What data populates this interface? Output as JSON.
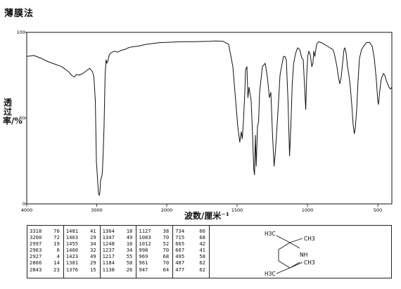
{
  "page_title": "薄膜法",
  "chart_data": {
    "type": "line",
    "title": "薄膜法",
    "xlabel": "波数/厘米⁻¹",
    "ylabel": "透过率/%",
    "xlim": [
      4000,
      400
    ],
    "ylim": [
      0,
      100
    ],
    "x_ticks": [
      4000,
      3000,
      2000,
      1500,
      1000,
      500
    ],
    "x_tick_labels": [
      "4000",
      "3000",
      "2000",
      "1500",
      "1000",
      "500"
    ],
    "y_ticks": [
      0,
      50,
      100
    ],
    "y_tick_labels": [
      "0",
      "50",
      "100"
    ],
    "grid": false,
    "legend": "none",
    "series": [
      {
        "line_color": "#111111",
        "points": [
          [
            4000,
            86
          ],
          [
            3900,
            86.5
          ],
          [
            3800,
            85
          ],
          [
            3700,
            83
          ],
          [
            3600,
            81.5
          ],
          [
            3500,
            80
          ],
          [
            3400,
            77
          ],
          [
            3360,
            75
          ],
          [
            3330,
            74.2
          ],
          [
            3318,
            74
          ],
          [
            3290,
            75.5
          ],
          [
            3250,
            75
          ],
          [
            3200,
            76
          ],
          [
            3150,
            77.5
          ],
          [
            3100,
            79
          ],
          [
            3080,
            78
          ],
          [
            3060,
            77
          ],
          [
            3040,
            74
          ],
          [
            3020,
            60
          ],
          [
            3005,
            25
          ],
          [
            2997,
            20
          ],
          [
            2985,
            12
          ],
          [
            2975,
            6
          ],
          [
            2963,
            5
          ],
          [
            2955,
            7
          ],
          [
            2945,
            14
          ],
          [
            2937,
            15
          ],
          [
            2927,
            16
          ],
          [
            2918,
            20
          ],
          [
            2908,
            30
          ],
          [
            2895,
            45
          ],
          [
            2880,
            75
          ],
          [
            2866,
            84
          ],
          [
            2855,
            82
          ],
          [
            2843,
            83
          ],
          [
            2820,
            87
          ],
          [
            2800,
            88
          ],
          [
            2750,
            89
          ],
          [
            2700,
            88.5
          ],
          [
            2650,
            89.5
          ],
          [
            2600,
            90
          ],
          [
            2550,
            91
          ],
          [
            2500,
            91.5
          ],
          [
            2400,
            92
          ],
          [
            2300,
            93
          ],
          [
            2200,
            93.5
          ],
          [
            2100,
            94
          ],
          [
            2000,
            94.2
          ],
          [
            1900,
            94.5
          ],
          [
            1800,
            94.6
          ],
          [
            1700,
            94.8
          ],
          [
            1650,
            95
          ],
          [
            1600,
            94.8
          ],
          [
            1560,
            93
          ],
          [
            1530,
            80
          ],
          [
            1510,
            60
          ],
          [
            1495,
            45
          ],
          [
            1481,
            36
          ],
          [
            1470,
            42
          ],
          [
            1463,
            38
          ],
          [
            1455,
            48
          ],
          [
            1445,
            65
          ],
          [
            1440,
            78
          ],
          [
            1430,
            80
          ],
          [
            1423,
            62
          ],
          [
            1415,
            68
          ],
          [
            1400,
            60
          ],
          [
            1390,
            40
          ],
          [
            1381,
            20
          ],
          [
            1376,
            17
          ],
          [
            1370,
            40
          ],
          [
            1364,
            22
          ],
          [
            1355,
            45
          ],
          [
            1347,
            48
          ],
          [
            1340,
            65
          ],
          [
            1320,
            80
          ],
          [
            1300,
            82
          ],
          [
            1285,
            74
          ],
          [
            1270,
            62
          ],
          [
            1260,
            65
          ],
          [
            1248,
            40
          ],
          [
            1237,
            22
          ],
          [
            1228,
            30
          ],
          [
            1217,
            44
          ],
          [
            1205,
            60
          ],
          [
            1195,
            75
          ],
          [
            1184,
            80
          ],
          [
            1170,
            86
          ],
          [
            1160,
            86
          ],
          [
            1150,
            84
          ],
          [
            1138,
            60
          ],
          [
            1127,
            28
          ],
          [
            1118,
            45
          ],
          [
            1108,
            70
          ],
          [
            1098,
            82
          ],
          [
            1083,
            88
          ],
          [
            1070,
            91
          ],
          [
            1055,
            90
          ],
          [
            1040,
            85
          ],
          [
            1030,
            84
          ],
          [
            1020,
            68
          ],
          [
            1012,
            55
          ],
          [
            1005,
            75
          ],
          [
            998,
            86
          ],
          [
            990,
            89
          ],
          [
            980,
            87
          ],
          [
            969,
            80
          ],
          [
            961,
            82
          ],
          [
            955,
            89
          ],
          [
            947,
            86
          ],
          [
            935,
            93
          ],
          [
            920,
            94.5
          ],
          [
            900,
            94
          ],
          [
            880,
            93
          ],
          [
            860,
            92
          ],
          [
            840,
            91
          ],
          [
            820,
            90
          ],
          [
            810,
            88
          ],
          [
            800,
            84
          ],
          [
            790,
            80
          ],
          [
            780,
            74
          ],
          [
            770,
            70
          ],
          [
            760,
            74
          ],
          [
            750,
            82
          ],
          [
            740,
            90
          ],
          [
            734,
            91
          ],
          [
            725,
            88
          ],
          [
            715,
            80
          ],
          [
            705,
            75
          ],
          [
            695,
            68
          ],
          [
            685,
            58
          ],
          [
            675,
            46
          ],
          [
            667,
            41
          ],
          [
            660,
            44
          ],
          [
            650,
            55
          ],
          [
            640,
            72
          ],
          [
            630,
            85
          ],
          [
            615,
            90
          ],
          [
            600,
            92
          ],
          [
            580,
            94
          ],
          [
            560,
            94.2
          ],
          [
            540,
            92
          ],
          [
            525,
            85
          ],
          [
            510,
            72
          ],
          [
            500,
            60
          ],
          [
            495,
            58
          ],
          [
            487,
            65
          ],
          [
            477,
            72
          ],
          [
            470,
            74
          ],
          [
            460,
            76
          ],
          [
            450,
            75
          ],
          [
            440,
            72
          ],
          [
            430,
            70
          ],
          [
            420,
            68
          ],
          [
            410,
            67
          ],
          [
            400,
            68
          ]
        ]
      }
    ]
  },
  "peak_table": [
    [
      [
        "3318",
        "70"
      ],
      [
        "3200",
        "72"
      ],
      [
        "2997",
        "19"
      ],
      [
        "2963",
        "6"
      ],
      [
        "2927",
        "4"
      ],
      [
        "2866",
        "14"
      ],
      [
        "2843",
        "23"
      ]
    ],
    [
      [
        "1481",
        "41"
      ],
      [
        "1463",
        "29"
      ],
      [
        "1455",
        "34"
      ],
      [
        "1460",
        "32"
      ],
      [
        "1423",
        "49"
      ],
      [
        "1381",
        "29"
      ],
      [
        "1376",
        "15"
      ]
    ],
    [
      [
        "1364",
        "18"
      ],
      [
        "1347",
        "49"
      ],
      [
        "1248",
        "16"
      ],
      [
        "1237",
        "34"
      ],
      [
        "1217",
        "55"
      ],
      [
        "1184",
        "58"
      ],
      [
        "1138",
        "26"
      ]
    ],
    [
      [
        "1127",
        "38"
      ],
      [
        "1083",
        "70"
      ],
      [
        "1012",
        "52"
      ],
      [
        "998",
        "70"
      ],
      [
        "969",
        "68"
      ],
      [
        "961",
        "70"
      ],
      [
        "947",
        "64"
      ]
    ],
    [
      [
        "734",
        "66"
      ],
      [
        "715",
        "68"
      ],
      [
        "665",
        "42"
      ],
      [
        "667",
        "41"
      ],
      [
        "495",
        "58"
      ],
      [
        "487",
        "62"
      ],
      [
        "477",
        "62"
      ]
    ]
  ],
  "structure": {
    "labels": {
      "top_methyl": "H3C",
      "right_top_methyl": "CH3",
      "amine": "NH",
      "right_bottom_methyl": "CH3",
      "bottom_methyl": "H3C"
    }
  }
}
